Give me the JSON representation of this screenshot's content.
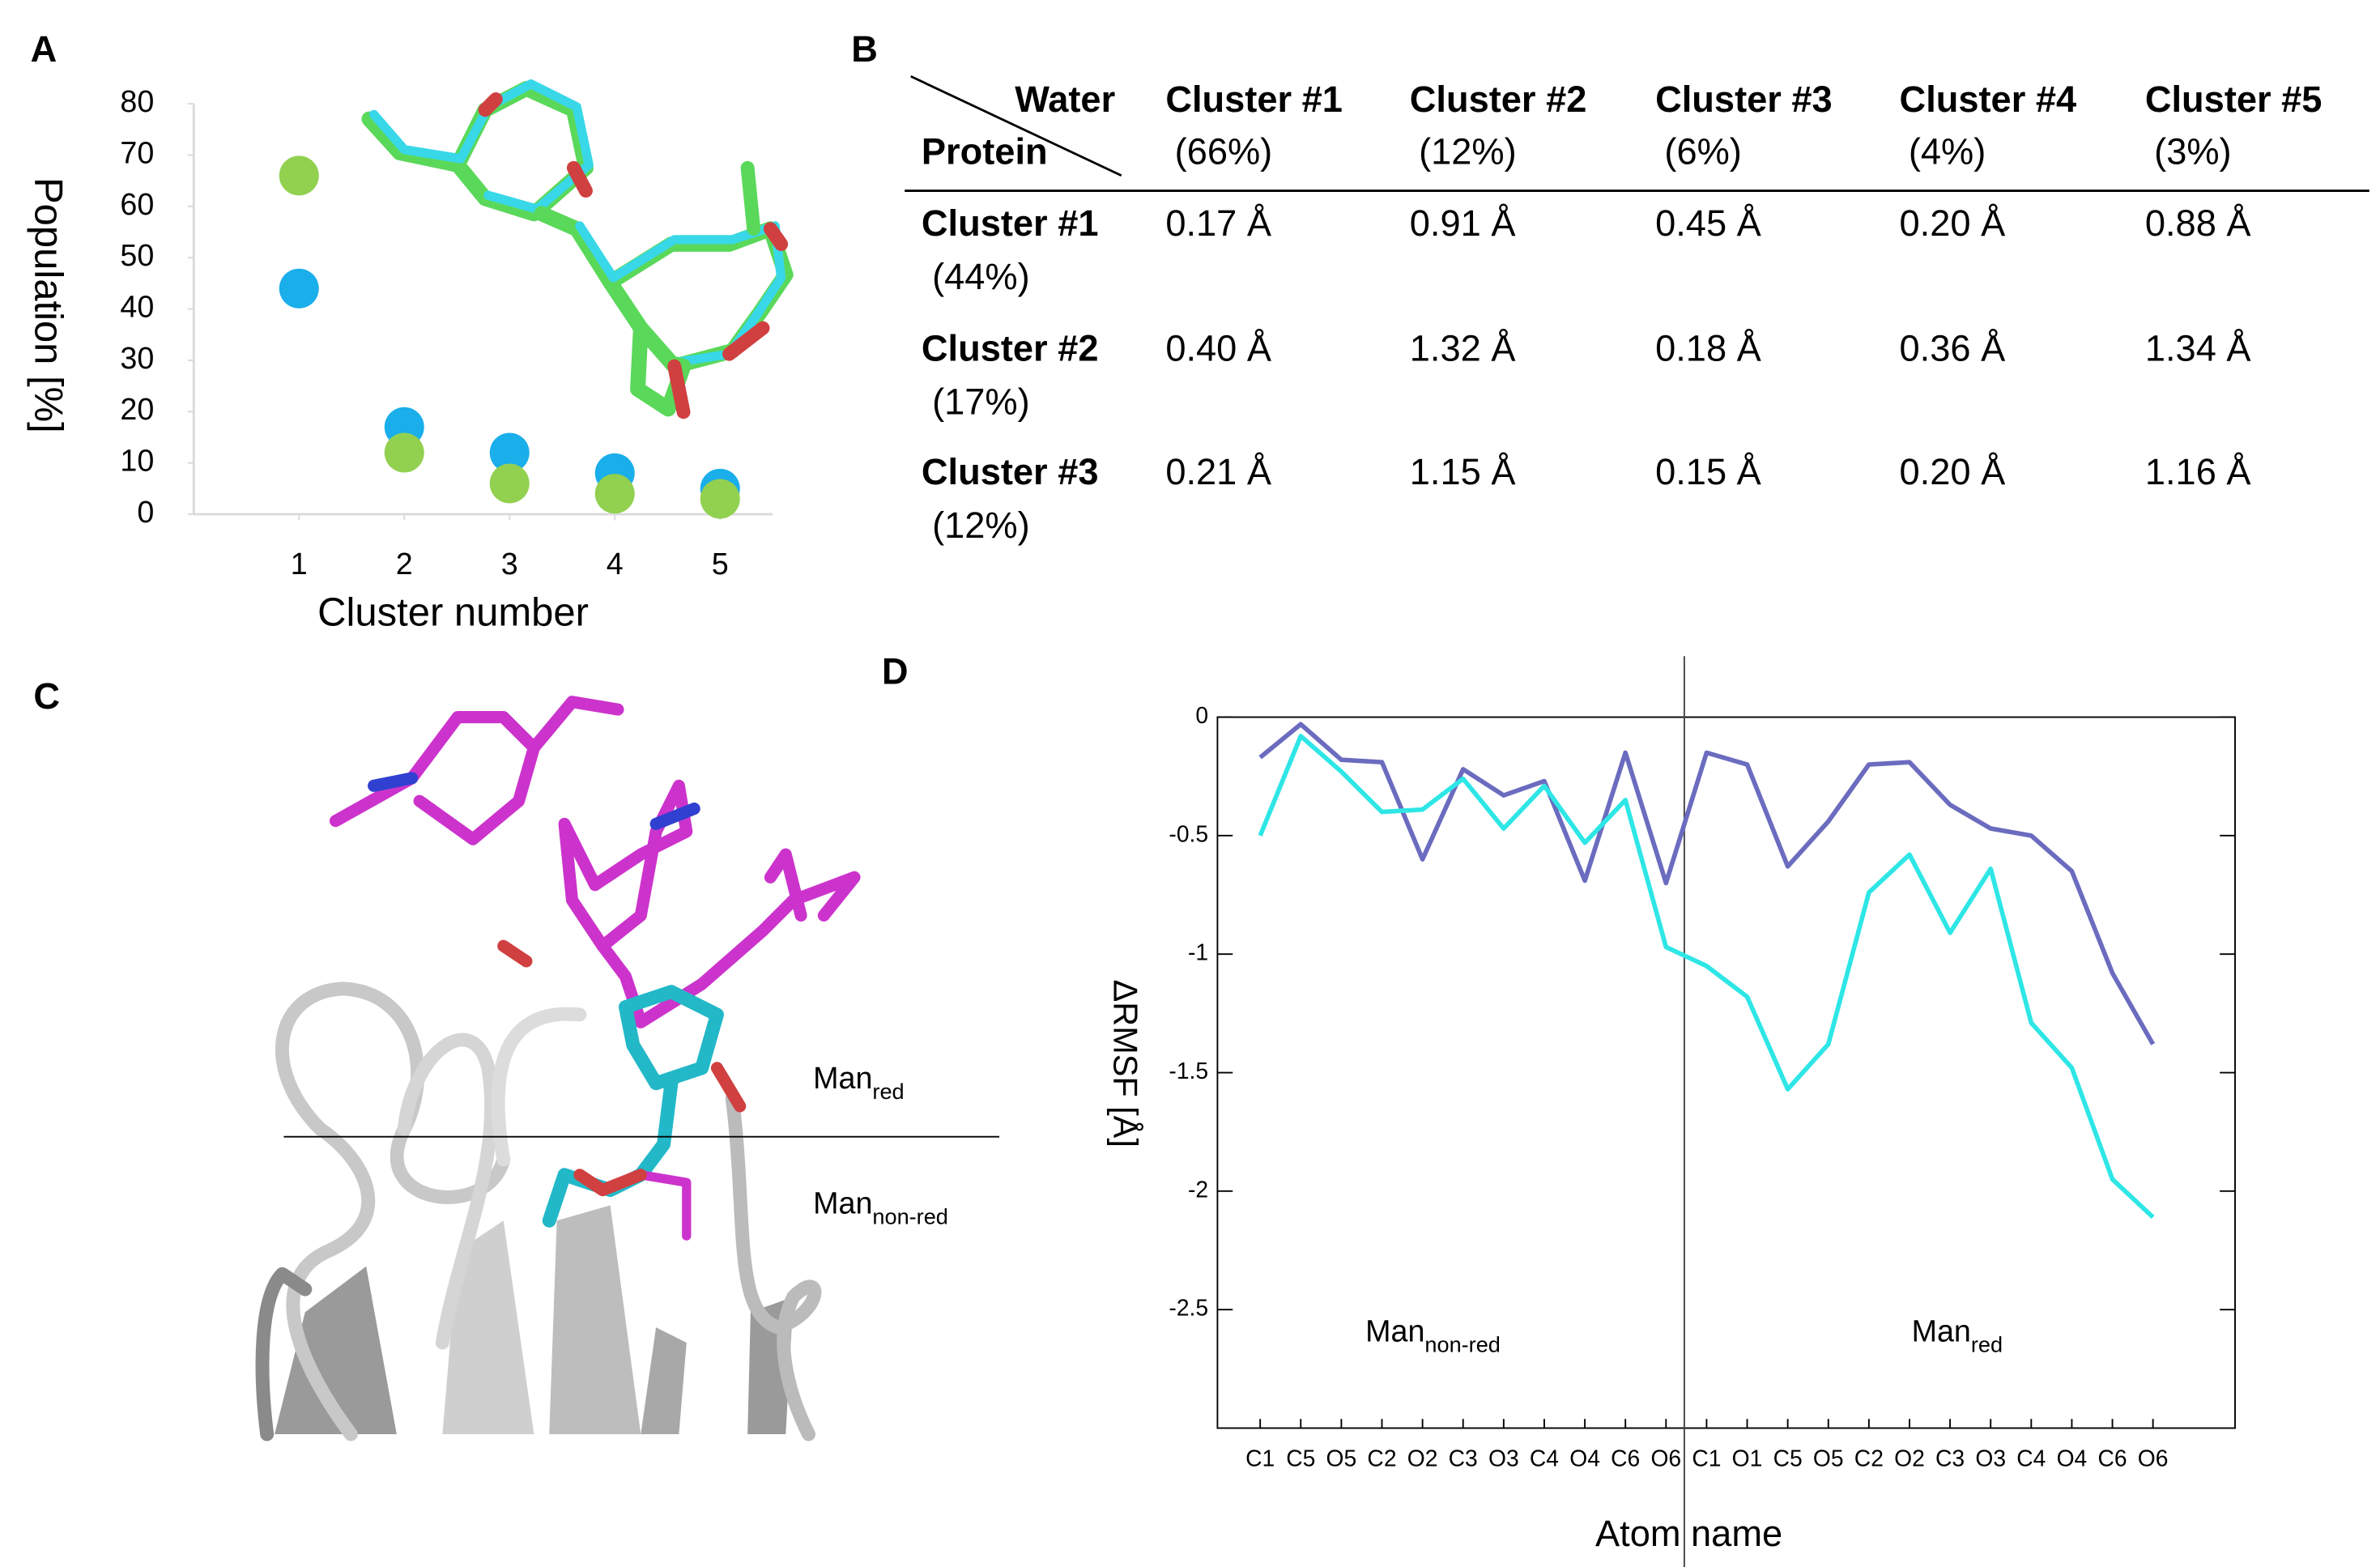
{
  "panel_labels": [
    "A",
    "B",
    "C",
    "D"
  ],
  "chart_data": [
    {
      "type": "scatter",
      "x_label": "Cluster number",
      "y_label": "Population [%]",
      "x": [
        1,
        2,
        3,
        4,
        5
      ],
      "xlim": [
        0,
        5.5
      ],
      "xticks": [
        1,
        2,
        3,
        4,
        5
      ],
      "ylim": [
        0,
        80
      ],
      "yticks": [
        0,
        10,
        20,
        30,
        40,
        50,
        60,
        70,
        80
      ],
      "series": [
        {
          "color": "#1aaeeb",
          "values": [
            44,
            17,
            12,
            8,
            5
          ]
        },
        {
          "color": "#92d050",
          "values": [
            66,
            12,
            6,
            4,
            3
          ]
        }
      ]
    },
    {
      "type": "line",
      "x_label": "Atom name",
      "y_label": "ΔRMSF [Å]",
      "categories": [
        "C1",
        "C5",
        "O5",
        "C2",
        "O2",
        "C3",
        "O3",
        "C4",
        "O4",
        "C6",
        "O6",
        "C1",
        "O1",
        "C5",
        "O5",
        "C2",
        "O2",
        "C3",
        "O3",
        "C4",
        "O4",
        "C6",
        "O6"
      ],
      "ylim": [
        -3,
        0
      ],
      "yticks": [
        0,
        -0.5,
        -1,
        -1.5,
        -2,
        -2.5
      ],
      "annotations": [
        {
          "text": "Man",
          "sub": "non-red"
        },
        {
          "text": "Man",
          "sub": "red"
        }
      ],
      "series": [
        {
          "color": "#6b6bbf",
          "values": [
            -0.17,
            -0.03,
            -0.18,
            -0.19,
            -0.6,
            -0.22,
            -0.33,
            -0.27,
            -0.69,
            -0.15,
            -0.7,
            -0.15,
            -0.2,
            -0.63,
            -0.44,
            -0.2,
            -0.19,
            -0.37,
            -0.47,
            -0.5,
            -0.65,
            -1.08,
            -1.38
          ]
        },
        {
          "color": "#2ee6e6",
          "values": [
            -0.5,
            -0.08,
            -0.23,
            -0.4,
            -0.39,
            -0.26,
            -0.47,
            -0.29,
            -0.53,
            -0.35,
            -0.97,
            -1.05,
            -1.18,
            -1.57,
            -1.38,
            -0.74,
            -0.58,
            -0.91,
            -0.64,
            -1.29,
            -1.48,
            -1.95,
            -2.11
          ]
        }
      ]
    }
  ],
  "table": {
    "corner": {
      "column": "Water",
      "row": "Protein"
    },
    "columns": [
      {
        "name": "Cluster #1",
        "share": "(66%)"
      },
      {
        "name": "Cluster #2",
        "share": "(12%)"
      },
      {
        "name": "Cluster #3",
        "share": "(6%)"
      },
      {
        "name": "Cluster #4",
        "share": "(4%)"
      },
      {
        "name": "Cluster #5",
        "share": "(3%)"
      }
    ],
    "rows": [
      {
        "name": "Cluster #1",
        "share": "(44%)",
        "cells": [
          "0.17 Å",
          "0.91 Å",
          "0.45 Å",
          "0.20 Å",
          "0.88  Å"
        ]
      },
      {
        "name": "Cluster #2",
        "share": "(17%)",
        "cells": [
          "0.40 Å",
          "1.32 Å",
          "0.18 Å",
          "0.36 Å",
          "1.34 Å"
        ]
      },
      {
        "name": "Cluster #3",
        "share": "(12%)",
        "cells": [
          "0.21 Å",
          "1.15 Å",
          "0.15 Å",
          "0.20 Å",
          "1.16  Å"
        ]
      }
    ]
  },
  "structure_labels": [
    {
      "text": "Man",
      "sub": "red"
    },
    {
      "text": "Man",
      "sub": "non-red"
    }
  ]
}
